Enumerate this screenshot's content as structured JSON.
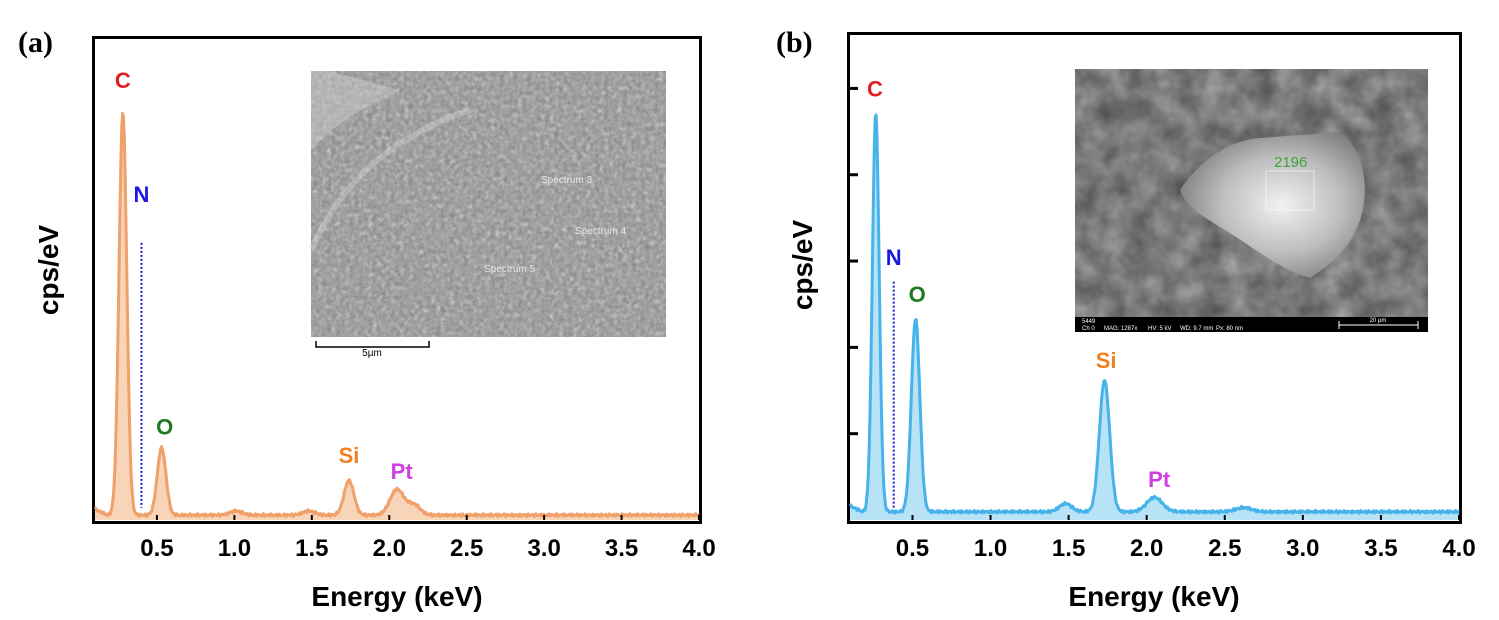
{
  "chart_data": [
    {
      "panel_label": "(a)",
      "type": "line",
      "xlabel": "Energy (keV)",
      "ylabel": "cps/eV",
      "xlim": [
        0.1,
        4.0
      ],
      "ylim": [
        0,
        100
      ],
      "x_ticks": [
        "0.5",
        "1.0",
        "1.5",
        "2.0",
        "2.5",
        "3.0",
        "3.5",
        "4.0"
      ],
      "y_ticks_labeled": false,
      "series_color": "#f0a06a",
      "fill_color": "#f8d4b8",
      "series": [
        {
          "baseline": 1.2,
          "peaks": [
            {
              "x": 0.28,
              "y": 99,
              "width": 0.025
            },
            {
              "x": 0.53,
              "y": 16.5,
              "width": 0.028
            },
            {
              "x": 1.01,
              "y": 1.0,
              "width": 0.04
            },
            {
              "x": 1.48,
              "y": 1.0,
              "width": 0.04
            },
            {
              "x": 1.74,
              "y": 8.5,
              "width": 0.032
            },
            {
              "x": 2.05,
              "y": 6.3,
              "width": 0.045
            },
            {
              "x": 2.16,
              "y": 2.5,
              "width": 0.04
            }
          ]
        }
      ],
      "peak_labels": [
        {
          "text": "C",
          "x": 0.28,
          "y": 106,
          "color": "#e02020"
        },
        {
          "text": "N",
          "x": 0.4,
          "y": 78,
          "color": "#1a1ae0"
        },
        {
          "text": "O",
          "x": 0.55,
          "y": 21,
          "color": "#1f7a1f"
        },
        {
          "text": "Si",
          "x": 1.74,
          "y": 14,
          "color": "#f08020"
        },
        {
          "text": "Pt",
          "x": 2.08,
          "y": 10,
          "color": "#d040e0"
        }
      ],
      "n_marker": {
        "x": 0.4,
        "y_top": 68,
        "y_bottom": 3,
        "color": "#1a1ae0"
      },
      "inset": {
        "kind": "sem-micrograph",
        "labels": [
          "Spectrum 3",
          "Spectrum 4",
          "Spectrum 5"
        ],
        "scale_bar": "5µm"
      }
    },
    {
      "panel_label": "(b)",
      "type": "line",
      "xlabel": "Energy (keV)",
      "ylabel": "cps/eV",
      "xlim": [
        0.1,
        4.0
      ],
      "ylim": [
        0,
        100
      ],
      "x_ticks": [
        "0.5",
        "1.0",
        "1.5",
        "2.0",
        "2.5",
        "3.0",
        "3.5",
        "4.0"
      ],
      "y_ticks_labeled": false,
      "series_color": "#46b4ea",
      "fill_color": "#b8e2f6",
      "series": [
        {
          "baseline": 2.0,
          "peaks": [
            {
              "x": 0.265,
              "y": 97,
              "width": 0.022
            },
            {
              "x": 0.52,
              "y": 47,
              "width": 0.027
            },
            {
              "x": 1.48,
              "y": 2.0,
              "width": 0.04
            },
            {
              "x": 1.73,
              "y": 32,
              "width": 0.033
            },
            {
              "x": 2.05,
              "y": 3.5,
              "width": 0.05
            },
            {
              "x": 2.62,
              "y": 1.0,
              "width": 0.05
            }
          ]
        }
      ],
      "peak_labels": [
        {
          "text": "C",
          "x": 0.26,
          "y": 103,
          "color": "#e02020"
        },
        {
          "text": "N",
          "x": 0.38,
          "y": 62,
          "color": "#1a1ae0"
        },
        {
          "text": "O",
          "x": 0.53,
          "y": 53,
          "color": "#1f7a1f"
        },
        {
          "text": "Si",
          "x": 1.74,
          "y": 37,
          "color": "#f08020"
        },
        {
          "text": "Pt",
          "x": 2.08,
          "y": 8,
          "color": "#d040e0"
        }
      ],
      "n_marker": {
        "x": 0.38,
        "y_top": 58,
        "y_bottom": 3,
        "color": "#1a1ae0"
      },
      "inset": {
        "kind": "sem-micrograph",
        "marker_label": "2196",
        "info_bar": [
          "5449",
          "Ch 0",
          "MAG: 1287x",
          "HV: 5 kV",
          "WD: 9.7 mm",
          "Px: 80 nm"
        ],
        "scale_bar": "20 µm"
      }
    }
  ]
}
